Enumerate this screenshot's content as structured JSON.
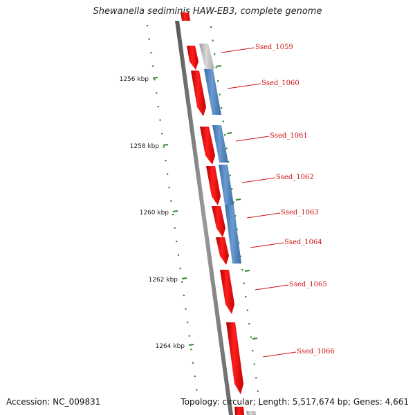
{
  "title": "Shewanella sediminis HAW-EB3, complete genome",
  "footer": {
    "accession": "Accession: NC_009831",
    "summary": "Topology: circular; Length: 5,517,674 bp; Genes: 4,661"
  },
  "ticks": [
    "1256 kbp",
    "1258 kbp",
    "1260 kbp",
    "1262 kbp",
    "1264 kbp"
  ],
  "gene_labels": [
    "Ssed_1059",
    "Ssed_1060",
    "Ssed_1061",
    "Ssed_1062",
    "Ssed_1063",
    "Ssed_1064",
    "Ssed_1065",
    "Ssed_1066"
  ],
  "colors": {
    "cds": "#ee1111",
    "gene": "#4a82c0",
    "gene_grey": "#bbbbbb",
    "backbone": "#777777",
    "ruler_dot": "#2a8a2a",
    "label": "#cc1111"
  }
}
